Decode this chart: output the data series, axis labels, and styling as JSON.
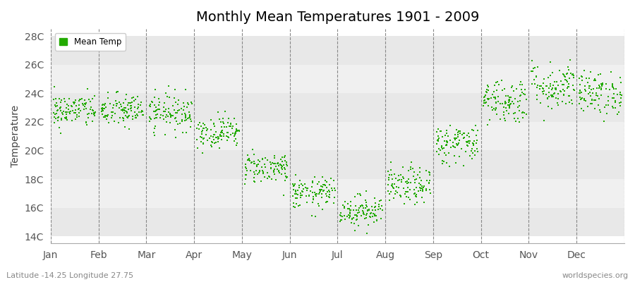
{
  "title": "Monthly Mean Temperatures 1901 - 2009",
  "ylabel": "Temperature",
  "xlabel_labels": [
    "Jan",
    "Feb",
    "Mar",
    "Apr",
    "May",
    "Jun",
    "Jul",
    "Aug",
    "Sep",
    "Oct",
    "Nov",
    "Dec"
  ],
  "ytick_labels": [
    "14C",
    "16C",
    "18C",
    "20C",
    "22C",
    "24C",
    "26C",
    "28C"
  ],
  "ytick_values": [
    14,
    16,
    18,
    20,
    22,
    24,
    26,
    28
  ],
  "ylim": [
    13.5,
    28.5
  ],
  "xlim": [
    0,
    12
  ],
  "dot_color": "#22aa00",
  "dot_size": 2.5,
  "legend_label": "Mean Temp",
  "subtitle": "Latitude -14.25 Longitude 27.75",
  "watermark": "worldspecies.org",
  "title_fontsize": 14,
  "axis_fontsize": 10,
  "background_color": "#ffffff",
  "band_colors": [
    "#e8e8e8",
    "#f0f0f0"
  ],
  "monthly_means": [
    22.8,
    22.8,
    22.7,
    21.3,
    18.8,
    17.0,
    15.8,
    17.5,
    20.5,
    23.5,
    24.5,
    24.0
  ],
  "monthly_stds": [
    0.6,
    0.6,
    0.65,
    0.55,
    0.55,
    0.55,
    0.55,
    0.65,
    0.7,
    0.8,
    0.85,
    0.75
  ],
  "n_years": 109,
  "random_seed": 42,
  "dashed_line_color": "#888888"
}
